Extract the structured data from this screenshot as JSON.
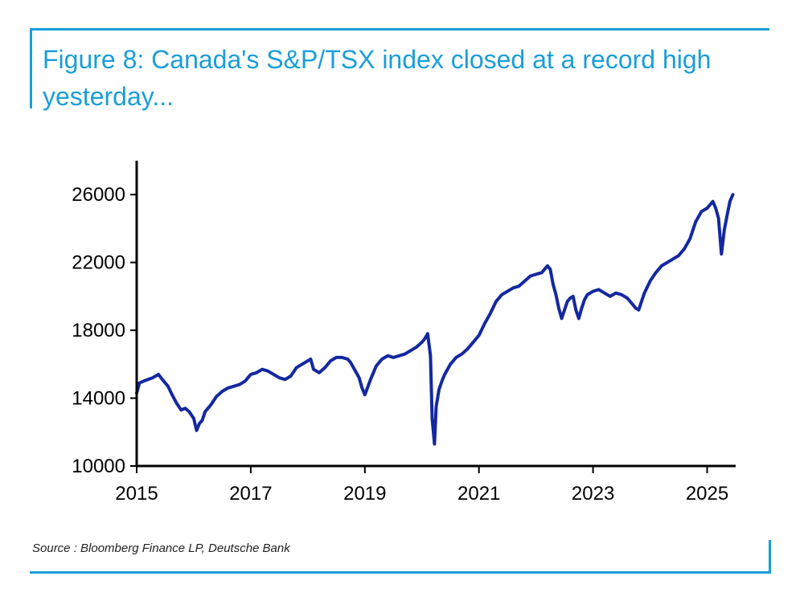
{
  "title": "Figure 8: Canada's S&P/TSX index closed at a record high yesterday...",
  "source": "Source : Bloomberg Finance LP, Deutsche Bank",
  "colors": {
    "accent": "#1a9ed8",
    "series": "#1428a0",
    "axis": "#000000"
  },
  "chart_data": {
    "type": "line",
    "title": "Figure 8: Canada's S&P/TSX index closed at a record high yesterday...",
    "xlabel": "",
    "ylabel": "",
    "xlim": [
      2015.0,
      2025.5
    ],
    "ylim": [
      10000,
      28000
    ],
    "xticks": [
      2015,
      2017,
      2019,
      2021,
      2023,
      2025
    ],
    "yticks": [
      10000,
      14000,
      18000,
      22000,
      26000
    ],
    "grid": false,
    "series": [
      {
        "name": "S&P/TSX index",
        "x": [
          2015.0,
          2015.05,
          2015.12,
          2015.2,
          2015.28,
          2015.38,
          2015.45,
          2015.55,
          2015.62,
          2015.7,
          2015.78,
          2015.85,
          2015.92,
          2016.0,
          2016.05,
          2016.1,
          2016.15,
          2016.2,
          2016.3,
          2016.4,
          2016.5,
          2016.6,
          2016.7,
          2016.8,
          2016.9,
          2017.0,
          2017.1,
          2017.2,
          2017.3,
          2017.4,
          2017.5,
          2017.6,
          2017.7,
          2017.8,
          2017.9,
          2018.0,
          2018.05,
          2018.1,
          2018.2,
          2018.3,
          2018.4,
          2018.5,
          2018.6,
          2018.7,
          2018.75,
          2018.8,
          2018.85,
          2018.9,
          2018.95,
          2019.0,
          2019.1,
          2019.2,
          2019.3,
          2019.4,
          2019.5,
          2019.6,
          2019.7,
          2019.8,
          2019.9,
          2020.0,
          2020.05,
          2020.1,
          2020.15,
          2020.18,
          2020.22,
          2020.25,
          2020.3,
          2020.35,
          2020.4,
          2020.5,
          2020.6,
          2020.7,
          2020.8,
          2020.9,
          2021.0,
          2021.1,
          2021.2,
          2021.3,
          2021.4,
          2021.5,
          2021.6,
          2021.7,
          2021.8,
          2021.9,
          2022.0,
          2022.1,
          2022.2,
          2022.25,
          2022.3,
          2022.35,
          2022.4,
          2022.45,
          2022.5,
          2022.55,
          2022.6,
          2022.65,
          2022.7,
          2022.75,
          2022.8,
          2022.85,
          2022.9,
          2023.0,
          2023.1,
          2023.2,
          2023.3,
          2023.4,
          2023.5,
          2023.6,
          2023.7,
          2023.75,
          2023.8,
          2023.85,
          2023.9,
          2024.0,
          2024.1,
          2024.2,
          2024.3,
          2024.4,
          2024.5,
          2024.6,
          2024.7,
          2024.8,
          2024.9,
          2025.0,
          2025.05,
          2025.1,
          2025.15,
          2025.2,
          2025.25,
          2025.3,
          2025.35,
          2025.4,
          2025.45
        ],
        "values": [
          14300,
          14900,
          15000,
          15100,
          15200,
          15400,
          15100,
          14700,
          14200,
          13700,
          13300,
          13400,
          13200,
          12800,
          12100,
          12500,
          12700,
          13200,
          13600,
          14100,
          14400,
          14600,
          14700,
          14800,
          15000,
          15400,
          15500,
          15700,
          15600,
          15400,
          15200,
          15100,
          15300,
          15800,
          16000,
          16200,
          16300,
          15700,
          15500,
          15800,
          16200,
          16400,
          16400,
          16300,
          16100,
          15800,
          15500,
          15200,
          14600,
          14200,
          15100,
          15900,
          16300,
          16500,
          16400,
          16500,
          16600,
          16800,
          17000,
          17300,
          17500,
          17800,
          16500,
          12800,
          11300,
          13500,
          14500,
          15000,
          15400,
          16000,
          16400,
          16600,
          16900,
          17300,
          17700,
          18400,
          19000,
          19700,
          20100,
          20300,
          20500,
          20600,
          20900,
          21200,
          21300,
          21400,
          21800,
          21600,
          20700,
          20100,
          19300,
          18700,
          19200,
          19700,
          19900,
          20000,
          19200,
          18700,
          19300,
          19800,
          20100,
          20300,
          20400,
          20200,
          20000,
          20200,
          20100,
          19900,
          19500,
          19300,
          19200,
          19700,
          20200,
          20900,
          21400,
          21800,
          22000,
          22200,
          22400,
          22800,
          23400,
          24400,
          25000,
          25200,
          25400,
          25600,
          25200,
          24600,
          22500,
          23900,
          24800,
          25600,
          26000
        ]
      }
    ]
  }
}
